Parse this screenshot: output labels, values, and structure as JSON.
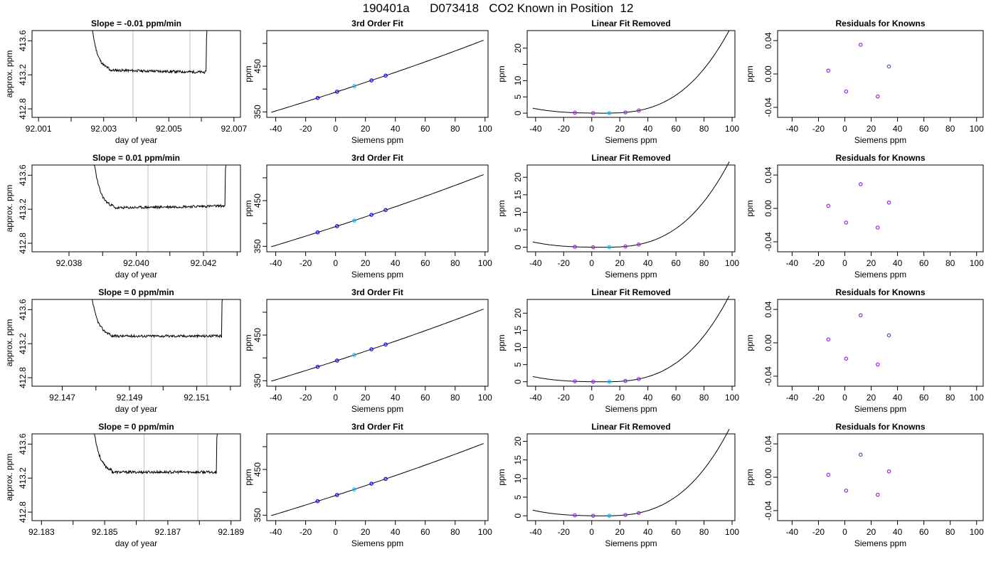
{
  "title": "190401a      D073418   CO2 Known in Position  12",
  "colors": {
    "line": "#000000",
    "frame": "#000000",
    "vline": "#bebebe",
    "point_blue": "#0000ff",
    "point_purple": "#a020f0",
    "point_cyan": "#00bfff"
  },
  "rows": [
    {
      "timeseries": {
        "title": "Slope =  -0.01  ppm/min",
        "xlabel": "day of year",
        "ylabel": "approx. ppm",
        "xlim": [
          92.0008,
          92.0072
        ],
        "ylim": [
          412.7,
          413.72
        ],
        "xticks": [
          92.001,
          92.002,
          92.003,
          92.004,
          92.005,
          92.006,
          92.007
        ],
        "xtick_labels": [
          "92.001",
          "",
          "92.003",
          "",
          "92.005",
          "",
          "92.007"
        ],
        "yticks": [
          412.8,
          413.2,
          413.6
        ],
        "ytick_labels": [
          "412.8",
          "413.2",
          "413.6"
        ],
        "vlines": [
          92.0039,
          92.00565
        ],
        "start": 92.0025,
        "end": 92.0062,
        "plateau": 413.245,
        "trend": -0.01,
        "seed": 11
      },
      "fit": {
        "title": "3rd Order Fit",
        "xlabel": "Siemens ppm",
        "ylabel": "ppm",
        "xlim": [
          -46,
          102
        ],
        "ylim": [
          338,
          528
        ],
        "xticks": [
          -40,
          -20,
          0,
          20,
          40,
          60,
          80,
          100
        ],
        "yticks": [
          350,
          450
        ],
        "ytick_minor": [
          400,
          500
        ],
        "curve_x": [
          -43,
          99
        ],
        "curve": [
          352,
          1.0,
          0.0006,
          1.6e-06
        ],
        "points": [
          -12,
          1,
          12.5,
          24,
          33.5
        ]
      },
      "linfit": {
        "title": "Linear Fit Removed",
        "xlabel": "Siemens ppm",
        "ylabel": "ppm",
        "xlim": [
          -46,
          102
        ],
        "ylim": [
          -1.3,
          25.4
        ],
        "xticks": [
          -40,
          -20,
          0,
          20,
          40,
          60,
          80,
          100
        ],
        "yticks": [
          0,
          5,
          10,
          20
        ],
        "ytick_minor": [
          15
        ],
        "cubic_scale": 2.18e-05,
        "curve_x": [
          -42,
          98
        ],
        "points": [
          -12,
          1,
          12.5,
          24,
          33.5
        ]
      },
      "resid": {
        "title": "Residuals for Knowns",
        "xlabel": "Siemens ppm",
        "ylabel": "ppm",
        "xlim": [
          -51,
          105
        ],
        "ylim": [
          -0.052,
          0.052
        ],
        "xticks": [
          -40,
          -20,
          0,
          20,
          40,
          60,
          80,
          100
        ],
        "yticks": [
          -0.04,
          0.0,
          0.04
        ],
        "ytick_labels": [
          "-0.04",
          "0.00",
          "0.04"
        ],
        "points": [
          [
            -12.5,
            0.004
          ],
          [
            1,
            -0.021
          ],
          [
            12,
            0.035
          ],
          [
            25,
            -0.027
          ],
          [
            33.5,
            0.009
          ]
        ]
      }
    },
    {
      "timeseries": {
        "title": "Slope =  0.01  ppm/min",
        "xlabel": "day of year",
        "ylabel": "approx. ppm",
        "xlim": [
          92.0369,
          92.0431
        ],
        "ylim": [
          412.7,
          413.72
        ],
        "xticks": [
          92.038,
          92.039,
          92.04,
          92.041,
          92.042,
          92.043
        ],
        "xtick_labels": [
          "92.038",
          "",
          "92.040",
          "",
          "92.042",
          ""
        ],
        "yticks": [
          412.8,
          413.2,
          413.6
        ],
        "ytick_labels": [
          "412.8",
          "413.2",
          "413.6"
        ],
        "vlines": [
          92.04035,
          92.0421
        ],
        "start": 92.0386,
        "end": 92.0427,
        "plateau": 413.225,
        "trend": 0.01,
        "seed": 23
      },
      "fit": {
        "title": "3rd Order Fit",
        "xlabel": "Siemens ppm",
        "ylabel": "ppm",
        "xlim": [
          -46,
          102
        ],
        "ylim": [
          338,
          528
        ],
        "xticks": [
          -40,
          -20,
          0,
          20,
          40,
          60,
          80,
          100
        ],
        "yticks": [
          350,
          450
        ],
        "ytick_minor": [
          400,
          500
        ],
        "curve_x": [
          -43,
          99
        ],
        "curve": [
          352,
          1.0,
          0.0006,
          1.6e-06
        ],
        "points": [
          -12,
          1,
          12.5,
          24,
          33.5
        ]
      },
      "linfit": {
        "title": "Linear Fit Removed",
        "xlabel": "Siemens ppm",
        "ylabel": "ppm",
        "xlim": [
          -46,
          102
        ],
        "ylim": [
          -1.3,
          23.5
        ],
        "xticks": [
          -40,
          -20,
          0,
          20,
          40,
          60,
          80,
          100
        ],
        "yticks": [
          0,
          5,
          10,
          15,
          20
        ],
        "ytick_minor": [],
        "cubic_scale": 2.06e-05,
        "curve_x": [
          -42,
          98
        ],
        "points": [
          -12,
          1,
          12.5,
          24,
          33.5
        ]
      },
      "resid": {
        "title": "Residuals for Knowns",
        "xlabel": "Siemens ppm",
        "ylabel": "ppm",
        "xlim": [
          -51,
          105
        ],
        "ylim": [
          -0.052,
          0.052
        ],
        "xticks": [
          -40,
          -20,
          0,
          20,
          40,
          60,
          80,
          100
        ],
        "yticks": [
          -0.04,
          0.0,
          0.04
        ],
        "ytick_labels": [
          "-0.04",
          "0.00",
          "0.04"
        ],
        "points": [
          [
            -12.5,
            0.003
          ],
          [
            1,
            -0.017
          ],
          [
            12,
            0.029
          ],
          [
            25,
            -0.023
          ],
          [
            33.5,
            0.007
          ]
        ]
      }
    },
    {
      "timeseries": {
        "title": "Slope =  0  ppm/min",
        "xlabel": "day of year",
        "ylabel": "approx. ppm",
        "xlim": [
          92.1461,
          92.1523
        ],
        "ylim": [
          412.7,
          413.72
        ],
        "xticks": [
          92.147,
          92.148,
          92.149,
          92.15,
          92.151,
          92.152
        ],
        "xtick_labels": [
          "92.147",
          "",
          "92.149",
          "",
          "92.151",
          ""
        ],
        "yticks": [
          412.8,
          413.2,
          413.6
        ],
        "ytick_labels": [
          "412.8",
          "413.2",
          "413.6"
        ],
        "vlines": [
          92.14965,
          92.1513
        ],
        "start": 92.1477,
        "end": 92.1518,
        "plateau": 413.29,
        "trend": 0.0,
        "seed": 37
      },
      "fit": {
        "title": "3rd Order Fit",
        "xlabel": "Siemens ppm",
        "ylabel": "ppm",
        "xlim": [
          -46,
          102
        ],
        "ylim": [
          338,
          528
        ],
        "xticks": [
          -40,
          -20,
          0,
          20,
          40,
          60,
          80,
          100
        ],
        "yticks": [
          350,
          450
        ],
        "ytick_minor": [
          400,
          500
        ],
        "curve_x": [
          -43,
          99
        ],
        "curve": [
          352,
          1.0,
          0.0006,
          1.6e-06
        ],
        "points": [
          -12,
          1,
          12.5,
          24,
          33.5
        ]
      },
      "linfit": {
        "title": "Linear Fit Removed",
        "xlabel": "Siemens ppm",
        "ylabel": "ppm",
        "xlim": [
          -46,
          102
        ],
        "ylim": [
          -1.3,
          24.0
        ],
        "xticks": [
          -40,
          -20,
          0,
          20,
          40,
          60,
          80,
          100
        ],
        "yticks": [
          0,
          5,
          10,
          15,
          20
        ],
        "ytick_minor": [],
        "cubic_scale": 2.13e-05,
        "curve_x": [
          -42,
          98
        ],
        "points": [
          -12,
          1,
          12.5,
          24,
          33.5
        ]
      },
      "resid": {
        "title": "Residuals for Knowns",
        "xlabel": "Siemens ppm",
        "ylabel": "ppm",
        "xlim": [
          -51,
          105
        ],
        "ylim": [
          -0.052,
          0.052
        ],
        "xticks": [
          -40,
          -20,
          0,
          20,
          40,
          60,
          80,
          100
        ],
        "yticks": [
          -0.04,
          0.0,
          0.04
        ],
        "ytick_labels": [
          "-0.04",
          "0.00",
          "0.04"
        ],
        "points": [
          [
            -12.5,
            0.004
          ],
          [
            1,
            -0.019
          ],
          [
            12,
            0.033
          ],
          [
            25,
            -0.026
          ],
          [
            33.5,
            0.009
          ]
        ]
      }
    },
    {
      "timeseries": {
        "title": "Slope =  0  ppm/min",
        "xlabel": "day of year",
        "ylabel": "approx. ppm",
        "xlim": [
          92.1827,
          92.1893
        ],
        "ylim": [
          412.7,
          413.72
        ],
        "xticks": [
          92.183,
          92.184,
          92.185,
          92.186,
          92.187,
          92.188,
          92.189
        ],
        "xtick_labels": [
          "92.183",
          "",
          "92.185",
          "",
          "92.187",
          "",
          "92.189"
        ],
        "yticks": [
          412.8,
          413.2,
          413.6
        ],
        "ytick_labels": [
          "412.8",
          "413.2",
          "413.6"
        ],
        "vlines": [
          92.18625,
          92.18795
        ],
        "start": 92.1845,
        "end": 92.1886,
        "plateau": 413.27,
        "trend": 0.0,
        "seed": 53
      },
      "fit": {
        "title": "3rd Order Fit",
        "xlabel": "Siemens ppm",
        "ylabel": "ppm",
        "xlim": [
          -46,
          102
        ],
        "ylim": [
          338,
          528
        ],
        "xticks": [
          -40,
          -20,
          0,
          20,
          40,
          60,
          80,
          100
        ],
        "yticks": [
          350,
          450
        ],
        "ytick_minor": [
          400,
          500
        ],
        "curve_x": [
          -43,
          99
        ],
        "curve": [
          352,
          1.0,
          0.0006,
          1.6e-06
        ],
        "points": [
          -12,
          1,
          12.5,
          24,
          33.5
        ]
      },
      "linfit": {
        "title": "Linear Fit Removed",
        "xlabel": "Siemens ppm",
        "ylabel": "ppm",
        "xlim": [
          -46,
          102
        ],
        "ylim": [
          -1.3,
          22.0
        ],
        "xticks": [
          -40,
          -20,
          0,
          20,
          40,
          60,
          80,
          100
        ],
        "yticks": [
          0,
          5,
          10,
          15,
          20
        ],
        "ytick_minor": [],
        "cubic_scale": 1.93e-05,
        "curve_x": [
          -42,
          98
        ],
        "points": [
          -12,
          1,
          12.5,
          24,
          33.5
        ]
      },
      "resid": {
        "title": "Residuals for Knowns",
        "xlabel": "Siemens ppm",
        "ylabel": "ppm",
        "xlim": [
          -51,
          105
        ],
        "ylim": [
          -0.052,
          0.052
        ],
        "xticks": [
          -40,
          -20,
          0,
          20,
          40,
          60,
          80,
          100
        ],
        "yticks": [
          -0.04,
          0.0,
          0.04
        ],
        "ytick_labels": [
          "-0.04",
          "0.00",
          "0.04"
        ],
        "points": [
          [
            -12.5,
            0.003
          ],
          [
            1,
            -0.016
          ],
          [
            12,
            0.027
          ],
          [
            25,
            -0.021
          ],
          [
            33.5,
            0.007
          ]
        ]
      }
    }
  ],
  "chart_data": [
    {
      "type": "line",
      "panel": "Slope = -0.01 ppm/min",
      "xlabel": "day of year",
      "ylabel": "approx. ppm",
      "xlim": [
        92.001,
        92.007
      ],
      "ylim": [
        412.8,
        413.6
      ],
      "plateau_approx": 413.245,
      "integration_window": [
        92.0039,
        92.00565
      ]
    },
    {
      "type": "scatter",
      "panel": "Residuals for Knowns (row 1)",
      "x": [
        -12.5,
        1,
        12,
        25,
        33.5
      ],
      "y": [
        0.004,
        -0.021,
        0.035,
        -0.027,
        0.009
      ]
    },
    {
      "type": "scatter",
      "panel": "Residuals for Knowns (row 2)",
      "x": [
        -12.5,
        1,
        12,
        25,
        33.5
      ],
      "y": [
        0.003,
        -0.017,
        0.029,
        -0.023,
        0.007
      ]
    },
    {
      "type": "scatter",
      "panel": "Residuals for Knowns (row 3)",
      "x": [
        -12.5,
        1,
        12,
        25,
        33.5
      ],
      "y": [
        0.004,
        -0.019,
        0.033,
        -0.026,
        0.009
      ]
    },
    {
      "type": "scatter",
      "panel": "Residuals for Knowns (row 4)",
      "x": [
        -12.5,
        1,
        12,
        25,
        33.5
      ],
      "y": [
        0.003,
        -0.016,
        0.027,
        -0.021,
        0.007
      ]
    }
  ]
}
